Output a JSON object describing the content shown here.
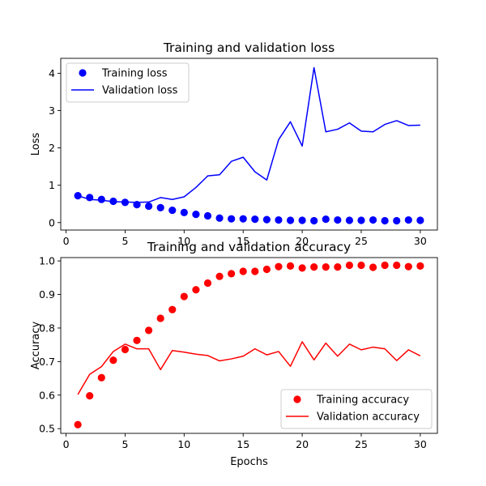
{
  "chart_data": [
    {
      "type": "line",
      "title": "Training and validation loss",
      "xlabel": "",
      "ylabel": "Loss",
      "xlim": [
        -0.45,
        31.45
      ],
      "ylim": [
        -0.2,
        4.4
      ],
      "xticks": [
        0,
        5,
        10,
        15,
        20,
        25,
        30
      ],
      "yticks": [
        0,
        1,
        2,
        3,
        4
      ],
      "grid": false,
      "legend_position": "upper-left",
      "x": [
        1,
        2,
        3,
        4,
        5,
        6,
        7,
        8,
        9,
        10,
        11,
        12,
        13,
        14,
        15,
        16,
        17,
        18,
        19,
        20,
        21,
        22,
        23,
        24,
        25,
        26,
        27,
        28,
        29,
        30
      ],
      "series": [
        {
          "name": "Training loss",
          "mark": "scatter",
          "color": "#0000ff",
          "values": [
            0.72,
            0.67,
            0.62,
            0.57,
            0.54,
            0.48,
            0.44,
            0.4,
            0.33,
            0.27,
            0.22,
            0.18,
            0.12,
            0.1,
            0.1,
            0.09,
            0.08,
            0.07,
            0.06,
            0.06,
            0.05,
            0.09,
            0.07,
            0.06,
            0.06,
            0.07,
            0.05,
            0.05,
            0.07,
            0.06
          ]
        },
        {
          "name": "Validation loss",
          "mark": "line",
          "color": "#0000ff",
          "values": [
            0.72,
            0.62,
            0.6,
            0.56,
            0.55,
            0.54,
            0.55,
            0.67,
            0.62,
            0.69,
            0.94,
            1.25,
            1.28,
            1.64,
            1.75,
            1.36,
            1.14,
            2.22,
            2.7,
            2.05,
            4.15,
            2.43,
            2.5,
            2.67,
            2.45,
            2.43,
            2.63,
            2.73,
            2.6,
            2.61
          ]
        }
      ]
    },
    {
      "type": "line",
      "title": "Training and validation accuracy",
      "xlabel": "Epochs",
      "ylabel": "Accuracy",
      "xlim": [
        -0.45,
        31.45
      ],
      "ylim": [
        0.486,
        1.01
      ],
      "xticks": [
        0,
        5,
        10,
        15,
        20,
        25,
        30
      ],
      "yticks": [
        0.5,
        0.6,
        0.7,
        0.8,
        0.9,
        1.0
      ],
      "ytick_labels": [
        "0.5",
        "0.6",
        "0.7",
        "0.8",
        "0.9",
        "1.0"
      ],
      "grid": false,
      "legend_position": "lower-right",
      "x": [
        1,
        2,
        3,
        4,
        5,
        6,
        7,
        8,
        9,
        10,
        11,
        12,
        13,
        14,
        15,
        16,
        17,
        18,
        19,
        20,
        21,
        22,
        23,
        24,
        25,
        26,
        27,
        28,
        29,
        30
      ],
      "series": [
        {
          "name": "Training accuracy",
          "mark": "scatter",
          "color": "#ff0000",
          "values": [
            0.512,
            0.598,
            0.652,
            0.704,
            0.736,
            0.763,
            0.793,
            0.829,
            0.855,
            0.894,
            0.914,
            0.934,
            0.954,
            0.962,
            0.969,
            0.969,
            0.975,
            0.983,
            0.985,
            0.979,
            0.982,
            0.982,
            0.982,
            0.987,
            0.987,
            0.981,
            0.987,
            0.987,
            0.983,
            0.985
          ]
        },
        {
          "name": "Validation accuracy",
          "mark": "line",
          "color": "#ff0000",
          "values": [
            0.602,
            0.662,
            0.685,
            0.73,
            0.752,
            0.738,
            0.738,
            0.676,
            0.733,
            0.728,
            0.722,
            0.718,
            0.702,
            0.708,
            0.716,
            0.738,
            0.72,
            0.73,
            0.686,
            0.759,
            0.705,
            0.755,
            0.716,
            0.752,
            0.735,
            0.743,
            0.738,
            0.703,
            0.735,
            0.717
          ]
        }
      ]
    }
  ]
}
